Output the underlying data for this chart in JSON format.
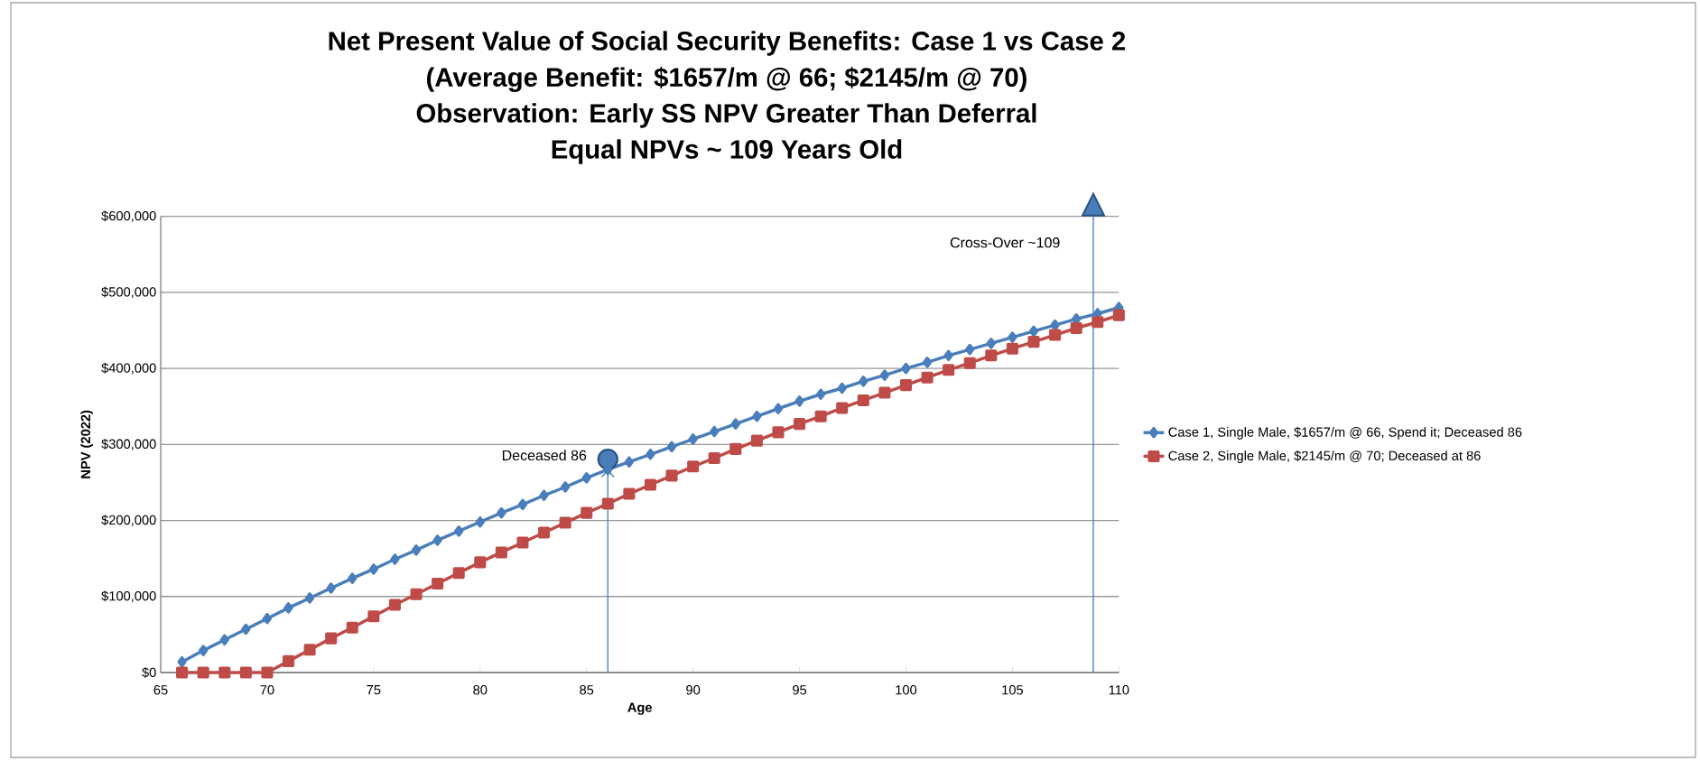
{
  "chart_data": {
    "type": "line",
    "title": "Net Present Value of Social Security Benefits:  Case 1 vs Case 2",
    "subtitle": "(Average Benefit: $1657/m @ 66; $2145/m @ 70)",
    "xlabel": "Age",
    "ylabel": "NPV (2022)",
    "x": [
      66,
      67,
      68,
      69,
      70,
      71,
      72,
      73,
      74,
      75,
      76,
      77,
      78,
      79,
      80,
      81,
      82,
      83,
      84,
      85,
      86,
      87,
      88,
      89,
      90,
      91,
      92,
      93,
      94,
      95,
      96,
      97,
      98,
      99,
      100,
      101,
      102,
      103,
      104,
      105,
      106,
      107,
      108,
      109,
      110
    ],
    "series": [
      {
        "name": "Case 1, Single Male, $1657/m @ 66, Spend it; Deceased 86",
        "color": "#4a7ebb",
        "marker": "diamond",
        "values": [
          14000,
          29000,
          43000,
          57000,
          71000,
          85000,
          98000,
          111000,
          124000,
          136000,
          149000,
          161000,
          174000,
          186000,
          198000,
          210000,
          221000,
          233000,
          244000,
          256000,
          267000,
          277000,
          287000,
          297000,
          307000,
          317000,
          327000,
          337000,
          347000,
          357000,
          366000,
          374000,
          383000,
          391000,
          400000,
          408000,
          417000,
          425000,
          433000,
          441000,
          449000,
          457000,
          465000,
          472000,
          480000
        ]
      },
      {
        "name": "Case 2, Single Male, $2145/m @ 70; Deceased at 86",
        "color": "#be4b48",
        "marker": "square",
        "values": [
          0,
          0,
          0,
          0,
          0,
          15000,
          30000,
          45000,
          59000,
          74000,
          89000,
          103000,
          117000,
          131000,
          145000,
          158000,
          171000,
          184000,
          197000,
          210000,
          222000,
          235000,
          247000,
          259000,
          271000,
          282000,
          294000,
          305000,
          316000,
          327000,
          337000,
          348000,
          358000,
          368000,
          378000,
          388000,
          398000,
          407000,
          417000,
          426000,
          435000,
          444000,
          453000,
          461000,
          470000
        ]
      }
    ],
    "xlim": [
      65,
      110
    ],
    "xticks": [
      65,
      70,
      75,
      80,
      85,
      90,
      95,
      100,
      105,
      110
    ],
    "ylim": [
      0,
      600000
    ],
    "yticks": [
      {
        "value": 0,
        "label": "$0"
      },
      {
        "value": 100000,
        "label": "$100,000"
      },
      {
        "value": 200000,
        "label": "$200,000"
      },
      {
        "value": 300000,
        "label": "$300,000"
      },
      {
        "value": 400000,
        "label": "$400,000"
      },
      {
        "value": 500000,
        "label": "$500,000"
      },
      {
        "value": 600000,
        "label": "$600,000"
      }
    ],
    "grid": "y",
    "legend": "right",
    "line_style": "solid",
    "annotations": [
      "Observation:  Early SS NPV Greater Than Deferral",
      "Equal NPVs ~ 109 Years Old",
      {
        "text": "Deceased 86",
        "x": 86,
        "y": 267000
      }
    ],
    "ref_lines": [
      {
        "axis": "x",
        "value": 108.8,
        "label": "Cross-Over ~109",
        "color": "#4a7ebb"
      }
    ]
  }
}
